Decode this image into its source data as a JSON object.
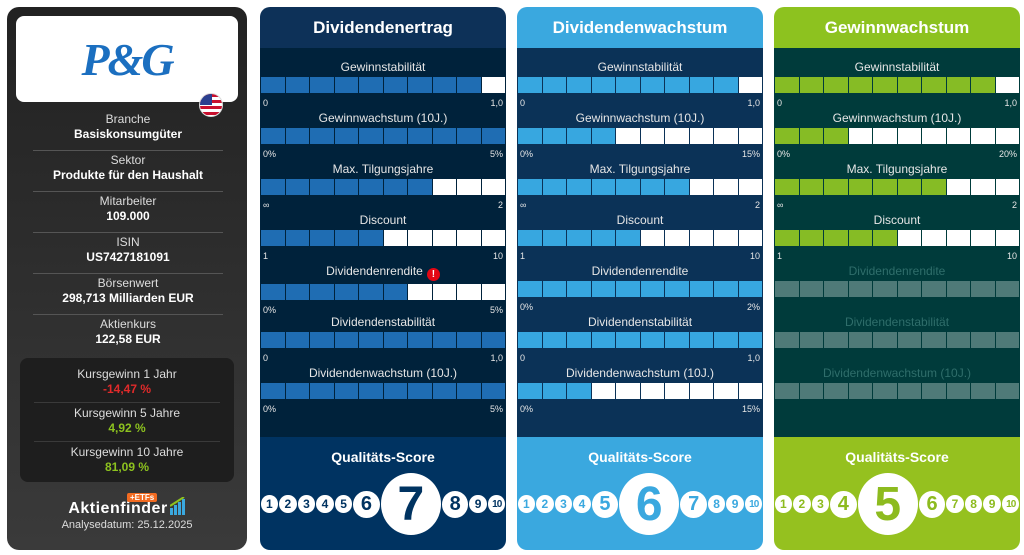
{
  "company": {
    "logo_text": "P&G",
    "flag": "us-flag-icon",
    "info": [
      {
        "label": "Branche",
        "value": "Basiskonsumgüter"
      },
      {
        "label": "Sektor",
        "value": "Produkte für den Haushalt"
      },
      {
        "label": "Mitarbeiter",
        "value": "109.000"
      },
      {
        "label": "ISIN",
        "value": "US7427181091"
      },
      {
        "label": "Börsenwert",
        "value": "298,713 Milliarden EUR"
      },
      {
        "label": "Aktienkurs",
        "value": "122,58 EUR"
      }
    ],
    "performance": [
      {
        "label": "Kursgewinn 1 Jahr",
        "value": "-14,47 %",
        "color": "#e02a2a"
      },
      {
        "label": "Kursgewinn 5 Jahre",
        "value": "4,92 %",
        "color": "#8dc21f"
      },
      {
        "label": "Kursgewinn 10 Jahre",
        "value": "81,09 %",
        "color": "#8dc21f"
      }
    ],
    "brand": "Aktienfinder",
    "brand_badge": "+ETFs",
    "analysis_date": "Analysedatum: 25.12.2025"
  },
  "cards": [
    {
      "title": "Dividendenertrag",
      "head_bg": "#0d3158",
      "body_bg": "#00223b",
      "bar": "#1f6db3",
      "score_bg": "#003361",
      "score_fg": "#003361",
      "metrics": [
        {
          "label": "Gewinnstabilität",
          "min": "0",
          "max": "1,0",
          "filled": 9
        },
        {
          "label": "Gewinnwachstum (10J.)",
          "min": "0%",
          "max": "5%",
          "filled": 10
        },
        {
          "label": "Max. Tilgungsjahre",
          "min": "∞",
          "max": "2",
          "filled": 7
        },
        {
          "label": "Discount",
          "min": "1",
          "max": "10",
          "filled": 5
        },
        {
          "label": "Dividendenrendite",
          "min": "0%",
          "max": "5%",
          "filled": 6,
          "warning": "!"
        },
        {
          "label": "Dividendenstabilität",
          "min": "0",
          "max": "1,0",
          "filled": 10
        },
        {
          "label": "Dividendenwachstum (10J.)",
          "min": "0%",
          "max": "5%",
          "filled": 10
        }
      ],
      "score_label": "Qualitäts-Score",
      "score": 7
    },
    {
      "title": "Dividendenwachstum",
      "head_bg": "#3aa8df",
      "body_bg": "#0b3257",
      "bar": "#37a7e0",
      "score_bg": "#3aa8df",
      "score_fg": "#3aa8df",
      "metrics": [
        {
          "label": "Gewinnstabilität",
          "min": "0",
          "max": "1,0",
          "filled": 9
        },
        {
          "label": "Gewinnwachstum (10J.)",
          "min": "0%",
          "max": "15%",
          "filled": 4
        },
        {
          "label": "Max. Tilgungsjahre",
          "min": "∞",
          "max": "2",
          "filled": 7
        },
        {
          "label": "Discount",
          "min": "1",
          "max": "10",
          "filled": 5
        },
        {
          "label": "Dividendenrendite",
          "min": "0%",
          "max": "2%",
          "filled": 10
        },
        {
          "label": "Dividendenstabilität",
          "min": "0",
          "max": "1,0",
          "filled": 10
        },
        {
          "label": "Dividendenwachstum (10J.)",
          "min": "0%",
          "max": "15%",
          "filled": 3
        }
      ],
      "score_label": "Qualitäts-Score",
      "score": 6
    },
    {
      "title": "Gewinnwachstum",
      "head_bg": "#8dc21f",
      "body_bg": "#003b3b",
      "bar": "#86bc25",
      "score_bg": "#95c11f",
      "score_fg": "#8dbb1f",
      "metrics": [
        {
          "label": "Gewinnstabilität",
          "min": "0",
          "max": "1,0",
          "filled": 9
        },
        {
          "label": "Gewinnwachstum (10J.)",
          "min": "0%",
          "max": "20%",
          "filled": 3
        },
        {
          "label": "Max. Tilgungsjahre",
          "min": "∞",
          "max": "2",
          "filled": 7
        },
        {
          "label": "Discount",
          "min": "1",
          "max": "10",
          "filled": 5
        },
        {
          "label": "Dividendenrendite",
          "disabled": true
        },
        {
          "label": "Dividendenstabilität",
          "disabled": true
        },
        {
          "label": "Dividendenwachstum (10J.)",
          "disabled": true
        }
      ],
      "score_label": "Qualitäts-Score",
      "score": 5
    }
  ]
}
